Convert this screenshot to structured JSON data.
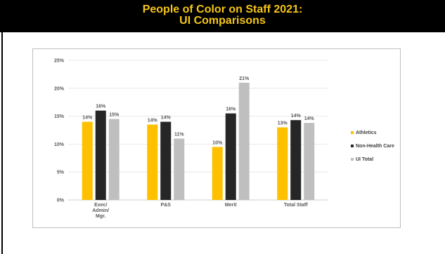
{
  "slide": {
    "title_line1": "People of Color on Staff 2021:",
    "title_line2": "UI Comparisons"
  },
  "colors": {
    "header_bg": "#000000",
    "header_text": "#f5c518",
    "athletics": "#FFC000",
    "non_health_care": "#262626",
    "ui_total": "#BFBFBF"
  },
  "chart_data": {
    "type": "bar",
    "categories": [
      [
        "Exec/",
        "Admin/",
        "Mgr."
      ],
      [
        "P&S"
      ],
      [
        "Merit"
      ],
      [
        "Total Staff"
      ]
    ],
    "series": [
      {
        "name": "Athletics",
        "values": [
          14,
          13.5,
          9.5,
          13
        ],
        "labels": [
          "14%",
          "14%",
          "10%",
          "13%"
        ]
      },
      {
        "name": "Non-Health Care",
        "values": [
          16,
          14,
          15.5,
          14.3
        ],
        "labels": [
          "16%",
          "14%",
          "16%",
          "14%"
        ]
      },
      {
        "name": "UI Total",
        "values": [
          14.5,
          11,
          21,
          13.8
        ],
        "labels": [
          "15%",
          "11%",
          "21%",
          "14%"
        ]
      }
    ],
    "yticks": [
      "0%",
      "5%",
      "10%",
      "15%",
      "20%",
      "25%"
    ],
    "ylim": [
      0,
      25
    ],
    "grid": true,
    "legend": "right"
  }
}
